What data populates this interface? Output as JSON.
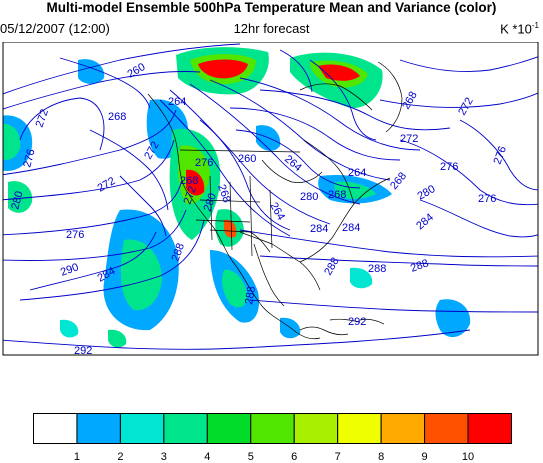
{
  "title": "Multi-model Ensemble 500hPa Temperature Mean and Variance (color)",
  "datetime": "05/12/2007 (12:00)",
  "forecast": "12hr forecast",
  "units": "K *10",
  "units_exponent": "-1",
  "contour_labels": [
    "260",
    "264",
    "268",
    "268",
    "272",
    "272",
    "276",
    "276",
    "276",
    "280",
    "272",
    "264",
    "260",
    "264",
    "268",
    "268",
    "272",
    "268",
    "276",
    "276",
    "264",
    "272",
    "268",
    "284",
    "284",
    "284",
    "288",
    "288",
    "288",
    "290",
    "288",
    "284",
    "292",
    "292",
    "292",
    "288",
    "276",
    "280",
    "280",
    "280",
    "272"
  ],
  "colorbar": {
    "labels": [
      "1",
      "2",
      "3",
      "4",
      "5",
      "6",
      "7",
      "8",
      "9",
      "10"
    ],
    "colors": [
      "#ffffff",
      "#00a8ff",
      "#00e6d2",
      "#00e48c",
      "#00dc28",
      "#50e600",
      "#a8f000",
      "#f0ff00",
      "#ffaa00",
      "#ff5000",
      "#ff0000"
    ]
  }
}
